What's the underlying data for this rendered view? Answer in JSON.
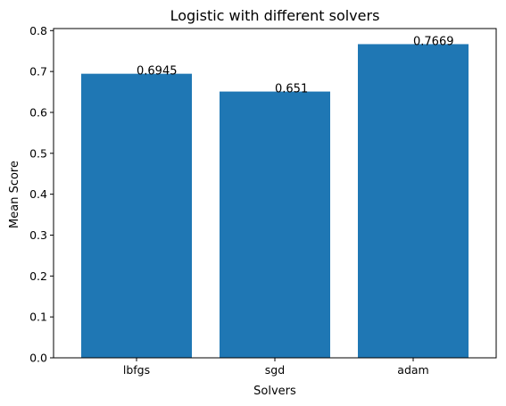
{
  "chart_data": {
    "type": "bar",
    "title": "Logistic with different solvers",
    "xlabel": "Solvers",
    "ylabel": "Mean Score",
    "categories": [
      "lbfgs",
      "sgd",
      "adam"
    ],
    "values": [
      0.6945,
      0.651,
      0.7669
    ],
    "value_labels": [
      "0.6945",
      "0.651",
      "0.7669"
    ],
    "ylim": [
      0,
      0.805
    ],
    "yticks": [
      0.0,
      0.1,
      0.2,
      0.3,
      0.4,
      0.5,
      0.6,
      0.7,
      0.8
    ],
    "ytick_labels": [
      "0.0",
      "0.1",
      "0.2",
      "0.3",
      "0.4",
      "0.5",
      "0.6",
      "0.7",
      "0.8"
    ],
    "bar_color": "#1f77b4",
    "grid": false,
    "legend": false
  }
}
